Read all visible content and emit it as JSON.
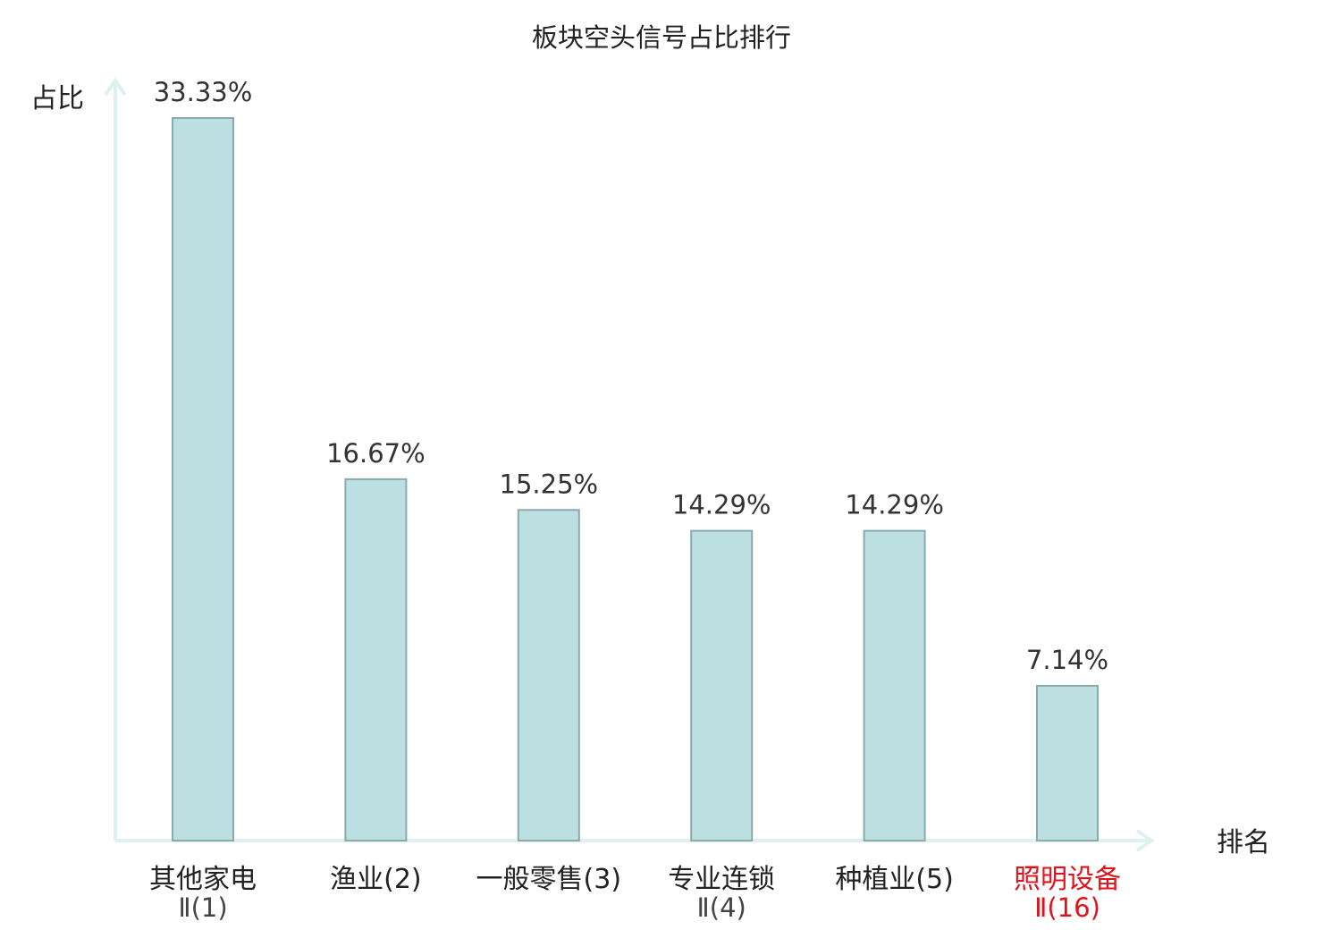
{
  "chart_data": {
    "type": "bar",
    "title": "板块空头信号占比排行",
    "ylabel": "占比",
    "xlabel": "排名",
    "ylim": [
      0,
      35
    ],
    "grid": false,
    "highlight_color": "#e0121b",
    "bar_color": "#bce0e2",
    "bar_border_color": "#8aa9aa",
    "axis_color": "#ddf1ef",
    "values": [
      33.33,
      16.67,
      15.25,
      14.29,
      14.29,
      7.14
    ],
    "value_labels": [
      "33.33%",
      "16.67%",
      "15.25%",
      "14.29%",
      "14.29%",
      "7.14%"
    ],
    "categories": [
      {
        "name": "其他家电",
        "sub": "Ⅱ(1)",
        "highlight": false
      },
      {
        "name": "渔业(2)",
        "sub": "",
        "highlight": false
      },
      {
        "name": "一般零售(3)",
        "sub": "",
        "highlight": false
      },
      {
        "name": "专业连锁",
        "sub": "Ⅱ(4)",
        "highlight": false
      },
      {
        "name": "种植业(5)",
        "sub": "",
        "highlight": false
      },
      {
        "name": "照明设备",
        "sub": "Ⅱ(16)",
        "highlight": true
      }
    ]
  }
}
